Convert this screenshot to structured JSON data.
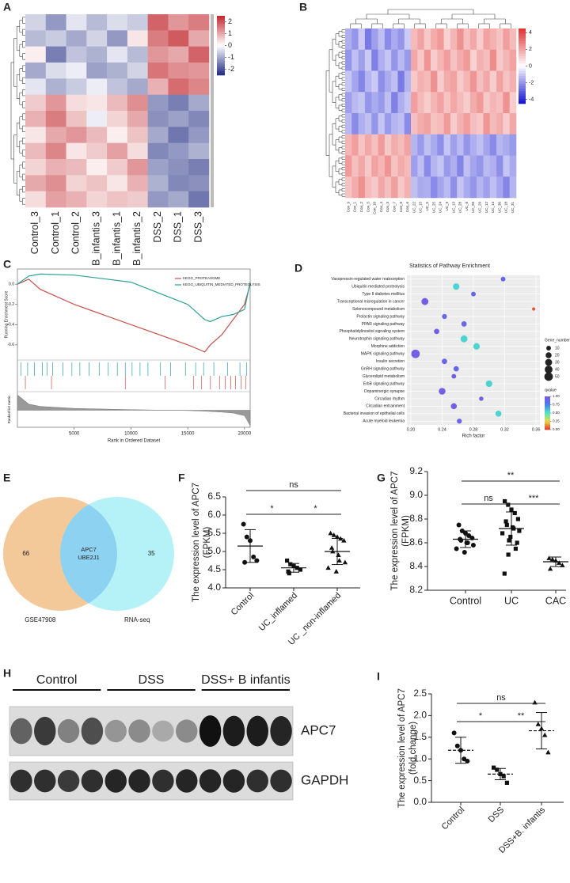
{
  "chart_data": [
    {
      "type": "heatmap",
      "panel": "A",
      "columns": [
        "Control_3",
        "Control_1",
        "Control_2",
        "B_infantis_3",
        "B_infantis_1",
        "B_infantis_2",
        "DSS_2",
        "DSS_1",
        "DSS_3"
      ],
      "zlim": [
        -2.5,
        2.5
      ],
      "zticks": [
        2,
        1,
        0,
        -1,
        -2
      ],
      "colors": {
        "low": "#1f2a80",
        "mid": "#ffffff",
        "high": "#c1272d"
      },
      "matrix": [
        [
          -0.5,
          -1.2,
          -0.3,
          -0.8,
          -0.4,
          -0.6,
          1.8,
          1.2,
          1.5
        ],
        [
          -0.8,
          -0.6,
          -1.0,
          -0.5,
          -1.2,
          0.3,
          1.5,
          1.9,
          1.0
        ],
        [
          0.2,
          -1.5,
          -0.7,
          -0.9,
          -0.3,
          -0.8,
          1.2,
          1.0,
          1.8
        ],
        [
          -1.0,
          -0.4,
          -0.2,
          -1.1,
          -0.9,
          -0.5,
          1.6,
          1.3,
          1.2
        ],
        [
          -0.3,
          -0.9,
          -0.6,
          -0.2,
          -0.7,
          -1.0,
          0.9,
          1.7,
          1.4
        ],
        [
          0.6,
          1.2,
          0.4,
          0.3,
          0.8,
          1.3,
          -1.2,
          -1.5,
          -1.0
        ],
        [
          0.9,
          1.5,
          0.7,
          -0.2,
          0.5,
          1.0,
          -1.3,
          -1.1,
          -1.4
        ],
        [
          0.3,
          1.0,
          1.2,
          0.8,
          0.2,
          0.7,
          -1.0,
          -1.6,
          -1.2
        ],
        [
          0.8,
          1.4,
          0.3,
          0.6,
          1.1,
          0.4,
          -1.4,
          -1.2,
          -0.9
        ],
        [
          0.5,
          0.9,
          0.8,
          0.2,
          0.6,
          1.2,
          -1.1,
          -1.3,
          -1.5
        ],
        [
          1.0,
          1.3,
          0.5,
          0.7,
          0.3,
          0.9,
          -0.9,
          -1.4,
          -1.3
        ],
        [
          0.4,
          1.1,
          0.9,
          0.5,
          0.7,
          0.6,
          -1.2,
          -1.0,
          -1.6
        ]
      ]
    },
    {
      "type": "heatmap",
      "panel": "B",
      "columns": [
        "Con_9",
        "Con_1",
        "Con_2",
        "Con_5",
        "Con_10",
        "Con_4",
        "Con_3",
        "Con_7",
        "Con_8",
        "Con_6",
        "UC_22",
        "UC_15",
        "UC_5",
        "UC_25",
        "UC_24",
        "UC_9",
        "UC_13",
        "UC_28",
        "UC_8",
        "UC_26",
        "UC_29",
        "UC_12",
        "UC_14",
        "UC_30",
        "UC_18",
        "UC_31"
      ],
      "zlim": [
        -4.5,
        4.5
      ],
      "zticks": [
        4,
        2,
        0,
        -2,
        -4
      ],
      "colors": {
        "low": "#1010d0",
        "mid": "#ffffff",
        "high": "#e03030"
      },
      "matrix": [
        [
          -1.5,
          -2,
          -1,
          -2.5,
          -1.8,
          -1.2,
          -2.2,
          -1.6,
          -2,
          -1,
          1.5,
          2,
          1.2,
          1.8,
          2.2,
          1,
          1.6,
          2.4,
          1.4,
          1.9,
          1.1,
          2,
          1.7,
          1.3,
          2.1,
          1.5
        ],
        [
          -2,
          -1.2,
          -1.8,
          -1,
          -2.4,
          -1.5,
          -1.1,
          -2,
          -1.3,
          -1.9,
          1.9,
          1.2,
          2.3,
          1.1,
          1.6,
          2.1,
          1.3,
          1.8,
          2.2,
          1,
          1.7,
          1.4,
          2.5,
          1.2,
          1.6,
          2
        ],
        [
          -1.1,
          -1.7,
          -2.3,
          -1.4,
          -1,
          -2.1,
          -1.6,
          -1.2,
          -2.5,
          -1.4,
          1.2,
          1.7,
          1.5,
          2.4,
          1.1,
          1.8,
          2,
          1.2,
          1.6,
          2.3,
          1.4,
          1.9,
          1.1,
          2,
          1.3,
          1.7
        ],
        [
          -1.8,
          -1.3,
          -1.1,
          -2,
          -1.6,
          -1.9,
          -1.2,
          -2.4,
          -1.5,
          -1.1,
          2.1,
          1.5,
          1.1,
          1.6,
          2,
          1.3,
          1.9,
          1.5,
          1.1,
          1.8,
          2.2,
          1.2,
          1.6,
          1.4,
          2.4,
          1.1
        ],
        [
          -1.3,
          -2.2,
          -1.5,
          -1.2,
          -2,
          -1.1,
          -1.9,
          -1.4,
          -1.2,
          -2.2,
          1.4,
          1.8,
          2,
          1.3,
          1.5,
          2.2,
          1.1,
          1.7,
          2.1,
          1.4,
          1.2,
          2.3,
          1.5,
          1.8,
          1.1,
          1.9
        ],
        [
          1.6,
          2.1,
          1.3,
          1.9,
          1.4,
          2.2,
          1.2,
          1.8,
          1.5,
          2,
          -1.4,
          -1.9,
          -1.2,
          -1.6,
          -2.1,
          -1.1,
          -1.8,
          -1.3,
          -2,
          -1.5,
          -1.2,
          -1.7,
          -2.2,
          -1.4,
          -1.6,
          -1.9
        ],
        [
          2.2,
          1.4,
          1.9,
          1.2,
          2,
          1.6,
          2.3,
          1.3,
          1.8,
          1.5,
          -1.8,
          -1.2,
          -2.2,
          -1.4,
          -1.1,
          -1.9,
          -1.5,
          -2.3,
          -1.2,
          -1.7,
          -2,
          -1.3,
          -1.5,
          -2.1,
          -1.1,
          -1.6
        ],
        [
          1.3,
          1.8,
          2.4,
          1.5,
          1.2,
          1.9,
          1.4,
          2.1,
          1.2,
          1.7,
          -1.2,
          -1.6,
          -1.5,
          -2.2,
          -1.7,
          -1.3,
          -2.1,
          -1.1,
          -1.6,
          -2,
          -1.4,
          -1.8,
          -1.2,
          -1.7,
          -2.3,
          -1.4
        ]
      ]
    },
    {
      "type": "line",
      "panel": "C",
      "y_label": "Running Enrichment Score",
      "y2_label": "Ranked list metric",
      "x_label": "Rank in Ordered Dataset",
      "x": [
        0,
        1000,
        2000,
        5000,
        10000,
        15000,
        16500,
        17000,
        18000,
        19000,
        20000,
        20500
      ],
      "xlim": [
        0,
        20500
      ],
      "xticks": [
        5000,
        10000,
        15000,
        20000
      ],
      "ylim": [
        -0.75,
        0.15
      ],
      "yticks": [
        {
          "value": 0,
          "label": "0.0"
        },
        -0.2,
        -0.4,
        -0.6
      ],
      "y2lim": [
        -1,
        1
      ],
      "ranked_metric": [
        1,
        0.4,
        0.25,
        0.12,
        0.04,
        -0.02,
        -0.06,
        -0.08,
        -0.12,
        -0.18,
        -0.35,
        -1
      ],
      "series": [
        {
          "name": "KEGG_PROTEASOME",
          "color": "#c8524a",
          "values": [
            0,
            0.05,
            -0.05,
            -0.2,
            -0.4,
            -0.6,
            -0.67,
            -0.6,
            -0.5,
            -0.35,
            -0.2,
            0
          ],
          "hits": [
            700,
            3000,
            9500,
            13000,
            15500,
            16200,
            17000,
            17800,
            18300,
            18800,
            19200,
            19700,
            20100
          ]
        },
        {
          "name": "KEGG_UBIQUITIN_MEDIATED_PROTEOLYSIS",
          "color": "#2aa198",
          "values": [
            0,
            0.08,
            0.1,
            0.09,
            0.02,
            -0.2,
            -0.35,
            -0.37,
            -0.32,
            -0.3,
            -0.25,
            0.02
          ],
          "hits": [
            300,
            900,
            1500,
            2200,
            2600,
            3100,
            4000,
            4800,
            5500,
            6300,
            7200,
            8000,
            8800,
            9500,
            10100,
            10800,
            11500,
            12600,
            13500,
            14800,
            15700,
            16400,
            17300,
            18500,
            19600,
            20200
          ]
        }
      ]
    },
    {
      "type": "bubble",
      "panel": "D",
      "title": "Statistics of Pathway Enrichment",
      "x_label": "Rich factor",
      "categories": [
        "Vasopressin-regulated water reabsorption",
        "Ubiquitin mediated proteolysis",
        "Type II diabetes mellitus",
        "Transcriptional misregulation in cancer",
        "Selenocompound metabolism",
        "Prolactin signaling pathway",
        "PPAR signaling pathway",
        "Phosphatidylinositol signaling system",
        "Neurotrophin signaling pathway",
        "Morphine addiction",
        "MAPK signaling pathway",
        "Insulin secretion",
        "GnRH signaling pathway",
        "Glycerolipid metabolism",
        "ErbB signaling pathway",
        "Dopaminergic synapse",
        "Circadian rhythm",
        "Circadian entrainment",
        "Bacterial invasion of epithelial cells",
        "Acute myeloid leukemia"
      ],
      "values": [
        0.318,
        0.258,
        0.28,
        0.218,
        0.357,
        0.243,
        0.268,
        0.233,
        0.268,
        0.284,
        0.206,
        0.243,
        0.258,
        0.255,
        0.3,
        0.24,
        0.29,
        0.255,
        0.312,
        0.262
      ],
      "sizes": [
        10,
        25,
        10,
        30,
        3,
        12,
        15,
        15,
        30,
        25,
        50,
        15,
        15,
        10,
        25,
        28,
        8,
        20,
        20,
        12
      ],
      "qvalues": [
        0.9,
        0.55,
        0.9,
        0.95,
        0.05,
        0.9,
        0.9,
        0.95,
        0.55,
        0.55,
        0.95,
        0.9,
        0.9,
        0.95,
        0.55,
        0.95,
        0.9,
        0.95,
        0.55,
        0.9
      ],
      "xlim": [
        0.195,
        0.365
      ],
      "xticks": [
        {
          "value": 0.2,
          "label": "0.20"
        },
        {
          "value": 0.24,
          "label": "0.24"
        },
        {
          "value": 0.28,
          "label": "0.28"
        },
        {
          "value": 0.32,
          "label": "0.32"
        },
        {
          "value": 0.36,
          "label": "0.36"
        }
      ],
      "grid": true,
      "size_legend": {
        "title": "Gene_number",
        "values": [
          10,
          20,
          30,
          40,
          50
        ]
      },
      "color_legend": {
        "title": "qvalue",
        "lim": [
          0,
          1
        ],
        "ticks": [
          {
            "value": 1,
            "label": "1.00"
          },
          {
            "value": 0.75,
            "label": "0.75"
          },
          {
            "value": 0.5,
            "label": "0.50"
          },
          {
            "value": 0.25,
            "label": "0.25"
          },
          {
            "value": 0,
            "label": "0.00"
          }
        ],
        "colors": [
          "#e8342a",
          "#e8d840",
          "#4ee8c8",
          "#4a7ef0",
          "#7e56e2"
        ]
      }
    },
    {
      "type": "venn",
      "panel": "E",
      "sets": [
        {
          "name": "GSE47908",
          "count": 66,
          "color": "#f4c99a"
        },
        {
          "name": "RNA-seq",
          "count": 35,
          "color": "#b4f2f8"
        }
      ],
      "overlap": {
        "items": [
          "APC7",
          "UBE2J1"
        ],
        "color": "#8ed2f2"
      }
    },
    {
      "type": "dotplot",
      "panel": "F",
      "y_label": [
        "The expression level of APC7",
        "(FPKM)"
      ],
      "categories": [
        "Control",
        "UC_inflamed",
        "UC _non-inflamed"
      ],
      "points": [
        [
          5.75,
          5.4,
          5.3,
          4.85,
          4.75,
          4.7
        ],
        [
          4.75,
          4.65,
          4.6,
          4.55,
          4.5,
          4.45,
          4.4
        ],
        [
          5.5,
          5.45,
          5.4,
          5.35,
          5.3,
          5.1,
          5.0,
          4.9,
          4.75,
          4.7,
          4.55,
          4.45
        ]
      ],
      "means": [
        5.15,
        4.55,
        5.0
      ],
      "sds": [
        0.45,
        0.12,
        0.36
      ],
      "ylim": [
        4.0,
        6.5
      ],
      "yticks": [
        {
          "value": 4,
          "label": "4.0"
        },
        4.5,
        {
          "value": 5,
          "label": "5.0"
        },
        5.5,
        {
          "value": 6,
          "label": "6.0"
        },
        6.5
      ],
      "markers": [
        "circle",
        "square",
        "triangle"
      ],
      "mean_style": "solid",
      "significance": [
        "ns",
        "*",
        "*"
      ]
    },
    {
      "type": "dotplot",
      "panel": "G",
      "y_label": [
        "The expression level of APC7",
        "(FPKM)"
      ],
      "categories": [
        "Control",
        "UC",
        "CAC"
      ],
      "points": [
        [
          8.75,
          8.7,
          8.68,
          8.66,
          8.64,
          8.63,
          8.62,
          8.6,
          8.6,
          8.58,
          8.55,
          8.52
        ],
        [
          8.95,
          8.92,
          8.88,
          8.85,
          8.8,
          8.78,
          8.75,
          8.73,
          8.72,
          8.7,
          8.68,
          8.65,
          8.62,
          8.6,
          8.55,
          8.5,
          8.34
        ],
        [
          8.47,
          8.46,
          8.45,
          8.43,
          8.41,
          8.38
        ]
      ],
      "means": [
        8.63,
        8.72,
        8.44
      ],
      "sds": [
        0.07,
        0.14,
        0.04
      ],
      "ylim": [
        8.2,
        9.2
      ],
      "yticks": [
        8.2,
        8.4,
        8.6,
        8.8,
        {
          "value": 9,
          "label": "9.0"
        },
        9.2
      ],
      "markers": [
        "circle",
        "square",
        "triangle"
      ],
      "mean_style": "solid",
      "significance": [
        "**",
        "ns",
        "***"
      ]
    },
    {
      "type": "blot",
      "panel": "H",
      "groups": [
        "Control",
        "DSS",
        "DSS+ B infantis"
      ],
      "rows": [
        {
          "name": "APC7",
          "values": [
            0.6,
            0.8,
            0.45,
            0.7,
            0.35,
            0.4,
            0.25,
            0.4,
            1.0,
            0.95,
            0.95,
            0.9
          ]
        },
        {
          "name": "GAPDH",
          "values": [
            0.85,
            0.85,
            0.8,
            0.85,
            0.9,
            0.9,
            0.85,
            0.9,
            0.9,
            0.9,
            0.85,
            0.85
          ]
        }
      ]
    },
    {
      "type": "dotplot",
      "panel": "I",
      "y_label": [
        "The expression level of APC7",
        "(fold change)"
      ],
      "categories": [
        "Control",
        "DSS",
        "DSS+B. infantis"
      ],
      "points": [
        [
          1.6,
          1.3,
          1.2,
          1.0,
          0.95
        ],
        [
          0.8,
          0.75,
          0.65,
          0.6,
          0.45
        ],
        [
          2.3,
          1.8,
          1.7,
          1.55,
          1.15
        ]
      ],
      "means": [
        1.2,
        0.65,
        1.65
      ],
      "sds": [
        0.3,
        0.13,
        0.42
      ],
      "ylim": [
        0,
        2.5
      ],
      "yticks": [
        {
          "value": 0,
          "label": "0.0"
        },
        0.5,
        {
          "value": 1,
          "label": "1.0"
        },
        1.5,
        {
          "value": 2,
          "label": "2.0"
        },
        2.5
      ],
      "markers": [
        "circle",
        "square",
        "triangle"
      ],
      "mean_style": "dashed",
      "significance": [
        "*",
        "**",
        "ns"
      ]
    }
  ]
}
